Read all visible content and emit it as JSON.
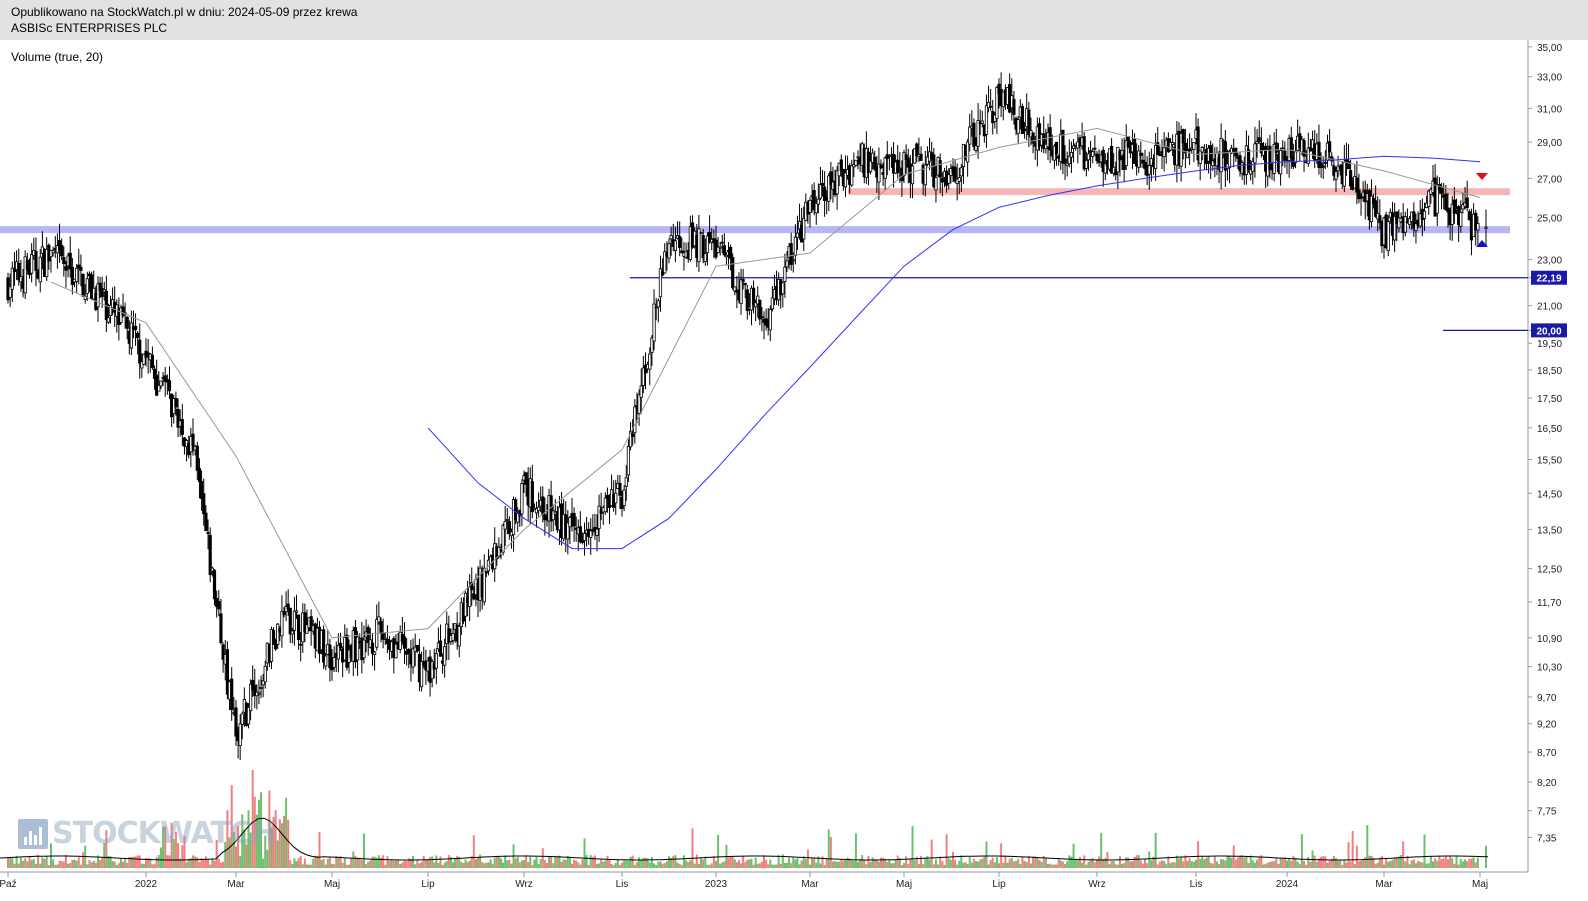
{
  "header": {
    "published": "Opublikowano na StockWatch.pl w dniu: 2024-05-09 przez krewa",
    "ticker": "ASBISc ENTERPRISES PLC"
  },
  "volume_label": "Volume (true, 20)",
  "watermark": "STOCKWATCH",
  "chart_data": {
    "type": "candlestick",
    "price_scale": "log",
    "ylim": [
      7.1,
      35.2
    ],
    "y_ticks": [
      "35,00",
      "33,00",
      "31,00",
      "29,00",
      "27,00",
      "25,00",
      "23,00",
      "22,19",
      "21,00",
      "20,00",
      "19,50",
      "18,50",
      "17,50",
      "16,50",
      "15,50",
      "14,50",
      "13,50",
      "12,50",
      "11,70",
      "10,90",
      "10,30",
      "9,70",
      "9,20",
      "8,70",
      "8,20",
      "7,75",
      "7,35"
    ],
    "x_ticks": [
      "Paź",
      "2022",
      "Mar",
      "Maj",
      "Lip",
      "Wrz",
      "Lis",
      "2023",
      "Mar",
      "Maj",
      "Lip",
      "Wrz",
      "Lis",
      "2024",
      "Mar",
      "Maj"
    ],
    "x_ticks_start_month": [
      "2021-10",
      "2022-01",
      "2022-03",
      "2022-05",
      "2022-07",
      "2022-09",
      "2022-11",
      "2023-01",
      "2023-03",
      "2023-05",
      "2023-07",
      "2023-09",
      "2023-11",
      "2024-01",
      "2024-03",
      "2024-05"
    ],
    "close_path": {
      "months": [
        "2021-10",
        "2021-11",
        "2021-12",
        "2022-01",
        "2022-02",
        "2022-03",
        "2022-04",
        "2022-05",
        "2022-06",
        "2022-07",
        "2022-08",
        "2022-09",
        "2022-10",
        "2022-11",
        "2022-12",
        "2023-01",
        "2023-02",
        "2023-03",
        "2023-04",
        "2023-05",
        "2023-06",
        "2023-07",
        "2023-08",
        "2023-09",
        "2023-10",
        "2023-11",
        "2023-12",
        "2024-01",
        "2024-02",
        "2024-03",
        "2024-04",
        "2024-05"
      ],
      "closes": [
        22.0,
        23.2,
        21.5,
        19.0,
        15.8,
        9.0,
        11.5,
        10.5,
        11.0,
        10.2,
        12.0,
        14.6,
        13.4,
        14.5,
        24.0,
        23.6,
        20.3,
        25.5,
        28.0,
        27.8,
        27.3,
        31.8,
        28.9,
        28.2,
        28.1,
        28.7,
        28.0,
        28.4,
        28.1,
        24.3,
        26.0,
        24.4
      ]
    },
    "ma_slow": {
      "months": [
        "2022-07",
        "2022-08",
        "2022-09",
        "2022-10",
        "2022-11",
        "2022-12",
        "2023-01",
        "2023-02",
        "2023-03",
        "2023-04",
        "2023-05",
        "2023-06",
        "2023-07",
        "2023-08",
        "2023-09",
        "2023-10",
        "2023-11",
        "2023-12",
        "2024-01",
        "2024-02",
        "2024-03",
        "2024-04",
        "2024-05"
      ],
      "values": [
        16.5,
        14.8,
        13.8,
        13.0,
        13.0,
        13.8,
        15.2,
        16.9,
        18.6,
        20.6,
        22.7,
        24.4,
        25.5,
        26.1,
        26.6,
        27.0,
        27.4,
        27.7,
        27.9,
        28.0,
        28.2,
        28.1,
        27.9
      ]
    },
    "ma_fast": {
      "months": [
        "2021-11",
        "2022-01",
        "2022-03",
        "2022-05",
        "2022-07",
        "2022-09",
        "2022-11",
        "2023-01",
        "2023-03",
        "2023-05",
        "2023-07",
        "2023-09",
        "2023-11",
        "2024-01",
        "2024-03",
        "2024-05"
      ],
      "values": [
        22.0,
        20.3,
        15.6,
        10.9,
        11.1,
        13.5,
        15.8,
        22.7,
        23.3,
        27.2,
        28.7,
        29.8,
        28.3,
        28.6,
        27.4,
        26.0
      ]
    },
    "horizontal_levels": [
      {
        "value": 22.19,
        "label": "22,19",
        "color": "#1a1aaa"
      },
      {
        "value": 20.0,
        "label": "20,00",
        "color": "#1a1aaa"
      }
    ],
    "zones": [
      {
        "value": 26.3,
        "color": "#f4b6b6"
      },
      {
        "value": 24.4,
        "color": "#b6b6f4"
      }
    ],
    "markers": [
      {
        "type": "sell-arrow",
        "color": "#dd1111",
        "date": "2024-05"
      },
      {
        "type": "buy-arrow",
        "color": "#1111cc",
        "date": "2024-05"
      }
    ],
    "volume": {
      "up_color": "#6cc06c",
      "down_color": "#f07f7f",
      "avg_color": "#000000"
    },
    "colors": {
      "candle": "#000000",
      "ma_slow": "#3030ff",
      "ma_fast": "#999999",
      "axis_text": "#222222"
    }
  }
}
